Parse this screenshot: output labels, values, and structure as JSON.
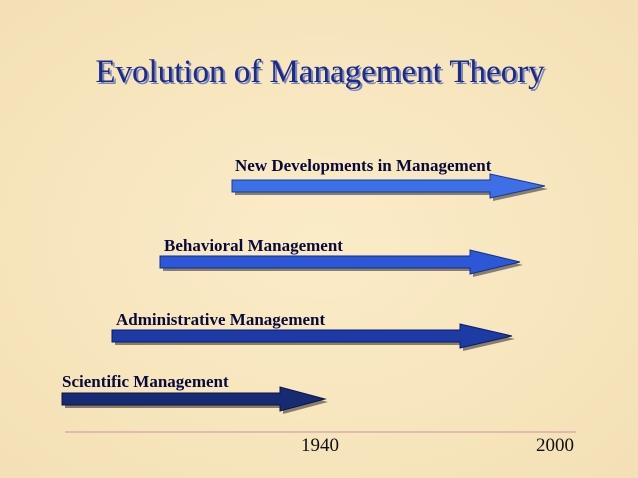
{
  "title": "Evolution of Management Theory",
  "stages": [
    {
      "label": "New Developments in Management"
    },
    {
      "label": "Behavioral Management"
    },
    {
      "label": "Administrative Management"
    },
    {
      "label": "Scientific Management"
    }
  ],
  "timeline": {
    "start_label": "1940",
    "end_label": "2000"
  }
}
